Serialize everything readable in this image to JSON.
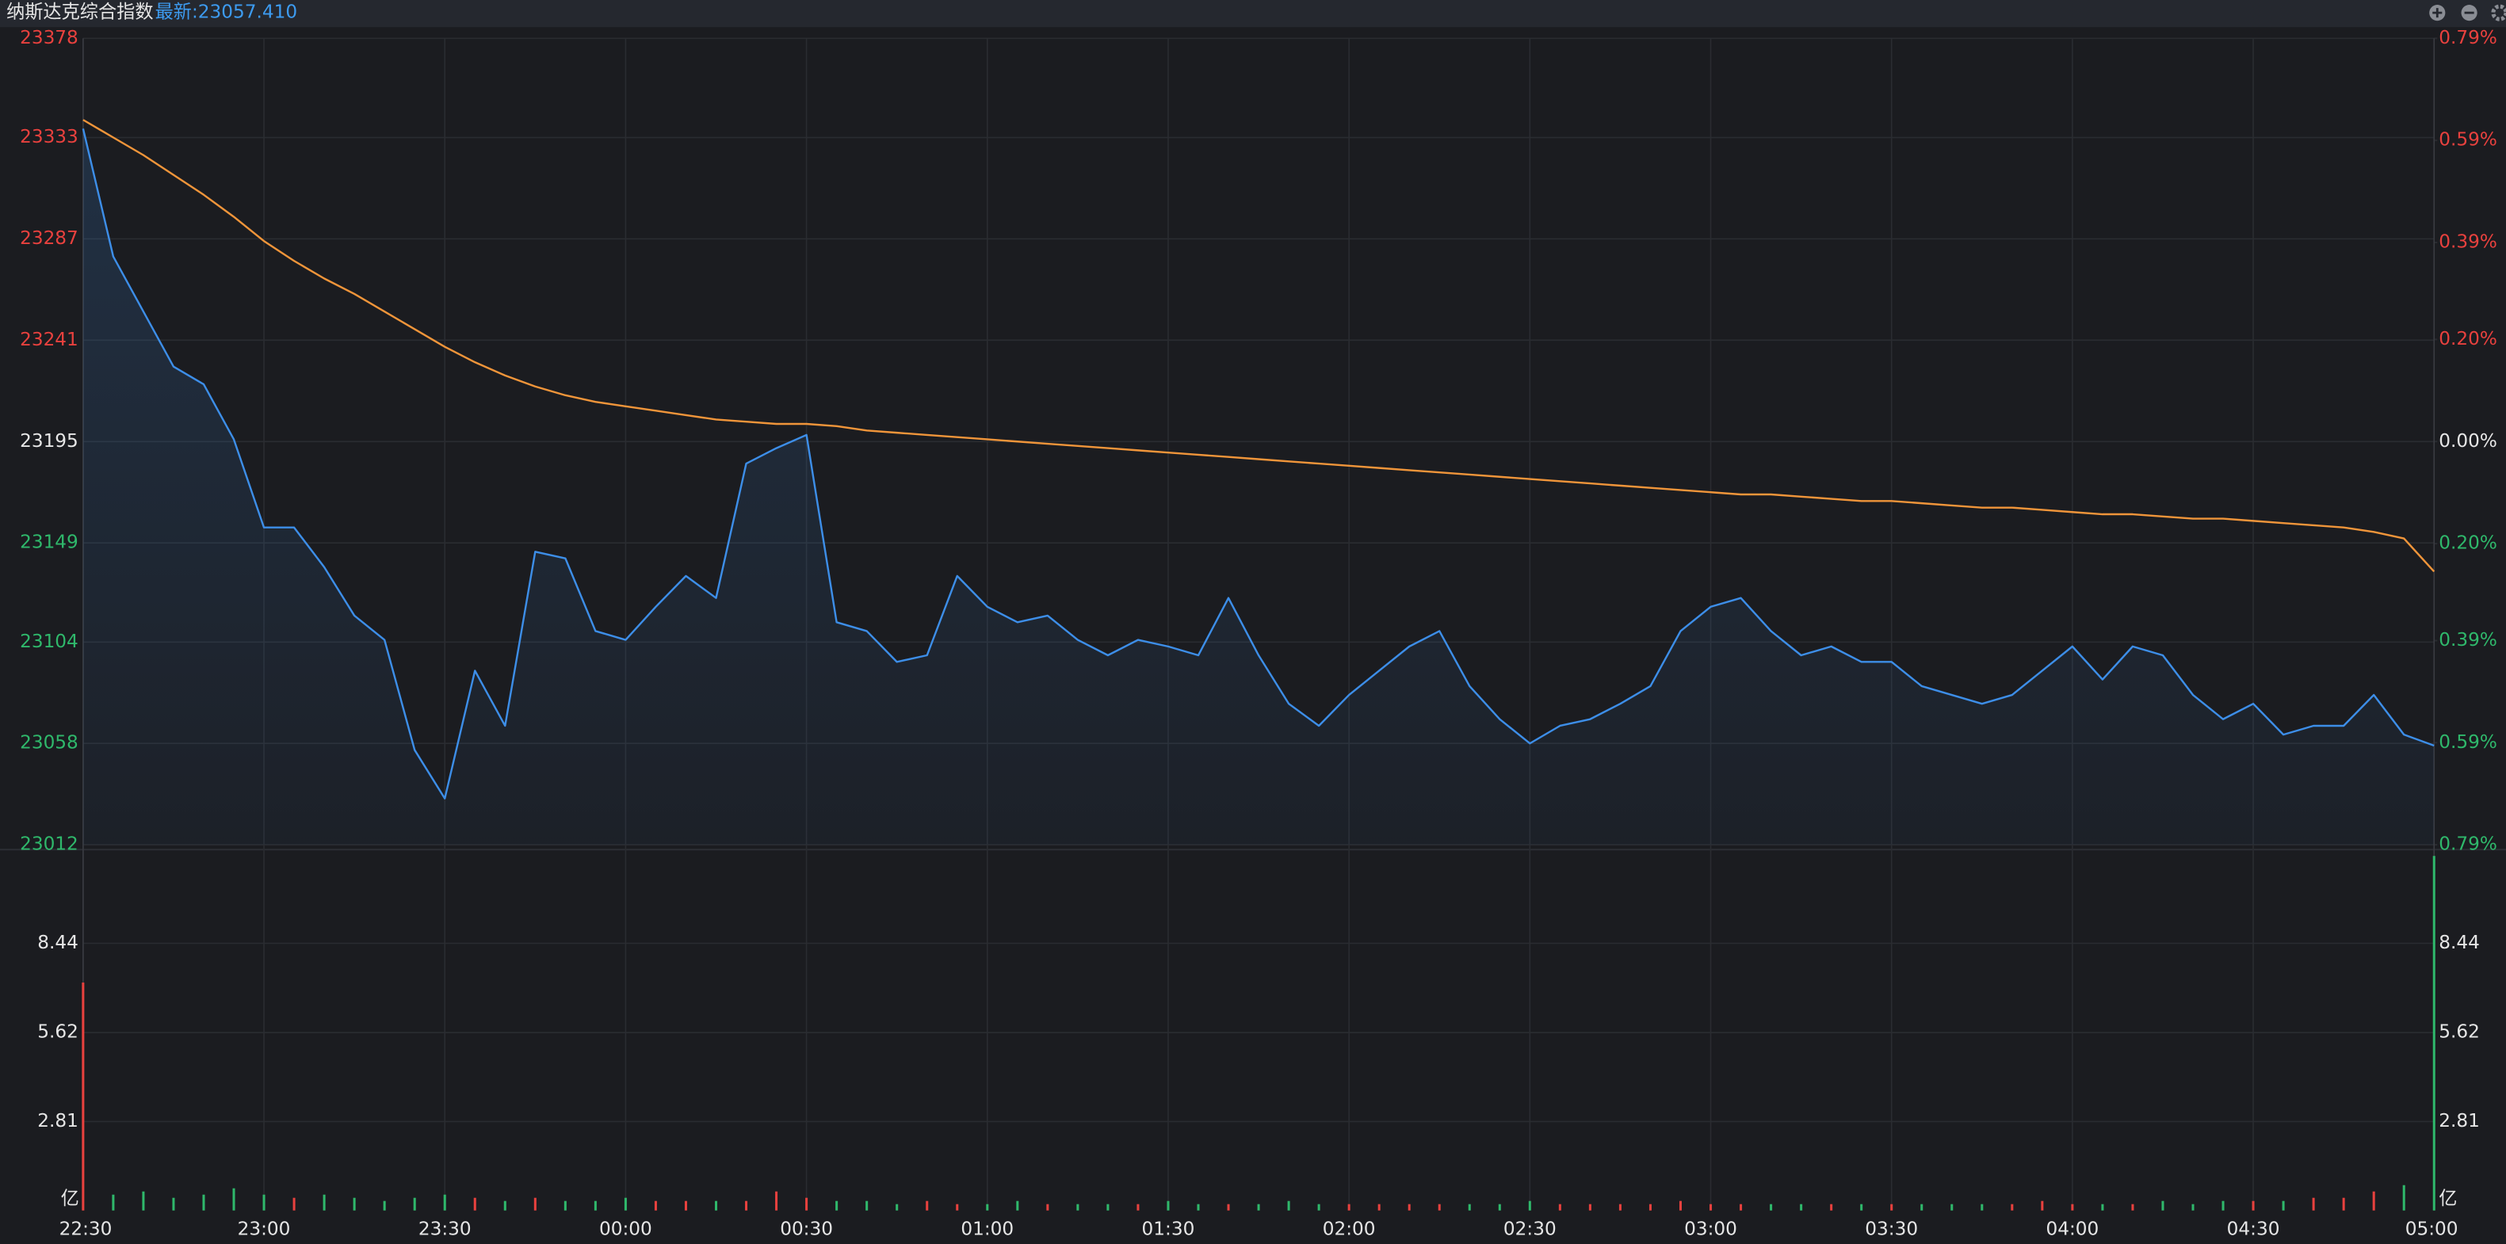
{
  "chart_data": {
    "type": "line",
    "title": "纳斯达克综合指数",
    "subtitle": "最新:23057.410",
    "x": [
      "22:30",
      "22:35",
      "22:40",
      "22:45",
      "22:50",
      "22:55",
      "23:00",
      "23:05",
      "23:10",
      "23:15",
      "23:20",
      "23:25",
      "23:30",
      "23:35",
      "23:40",
      "23:45",
      "23:50",
      "23:55",
      "00:00",
      "00:05",
      "00:10",
      "00:15",
      "00:20",
      "00:25",
      "00:30",
      "00:35",
      "00:40",
      "00:45",
      "00:50",
      "00:55",
      "01:00",
      "01:05",
      "01:10",
      "01:15",
      "01:20",
      "01:25",
      "01:30",
      "01:35",
      "01:40",
      "01:45",
      "01:50",
      "01:55",
      "02:00",
      "02:05",
      "02:10",
      "02:15",
      "02:20",
      "02:25",
      "02:30",
      "02:35",
      "02:40",
      "02:45",
      "02:50",
      "02:55",
      "03:00",
      "03:05",
      "03:10",
      "03:15",
      "03:20",
      "03:25",
      "03:30",
      "03:35",
      "03:40",
      "03:45",
      "03:50",
      "03:55",
      "04:00",
      "04:05",
      "04:10",
      "04:15",
      "04:20",
      "04:25",
      "04:30",
      "04:35",
      "04:40",
      "04:45",
      "04:50",
      "04:55",
      "05:00"
    ],
    "xticks": [
      "22:30",
      "23:00",
      "23:30",
      "00:00",
      "00:30",
      "01:00",
      "01:30",
      "02:00",
      "02:30",
      "03:00",
      "03:30",
      "04:00",
      "04:30",
      "05:00"
    ],
    "ylim": [
      23012,
      23378
    ],
    "yticks": [
      23378,
      23333,
      23287,
      23241,
      23195,
      23149,
      23104,
      23058,
      23012
    ],
    "y2lim": [
      -0.79,
      0.79
    ],
    "y2ticks": [
      {
        "value": 0.79,
        "label": "0.79%"
      },
      {
        "value": 0.59,
        "label": "0.59%"
      },
      {
        "value": 0.39,
        "label": "0.39%"
      },
      {
        "value": 0.2,
        "label": "0.20%"
      },
      {
        "value": 0,
        "label": "0.00%"
      },
      {
        "value": -0.2,
        "label": "0.20%"
      },
      {
        "value": -0.39,
        "label": "0.39%"
      },
      {
        "value": -0.59,
        "label": "0.59%"
      },
      {
        "value": -0.79,
        "label": "0.79%"
      }
    ],
    "grid": true,
    "area": true,
    "series": [
      {
        "color": "#3d8ee8",
        "values": [
          23337,
          23279,
          23254,
          23229,
          23221,
          23196,
          23156,
          23156,
          23138,
          23116,
          23105,
          23055,
          23033,
          23091,
          23066,
          23145,
          23142,
          23109,
          23105,
          23120,
          23134,
          23124,
          23185,
          23192,
          23198,
          23113,
          23109,
          23095,
          23098,
          23134,
          23120,
          23113,
          23116,
          23105,
          23098,
          23105,
          23102,
          23098,
          23124,
          23098,
          23076,
          23066,
          23080,
          23091,
          23102,
          23109,
          23084,
          23069,
          23058,
          23066,
          23069,
          23076,
          23084,
          23109,
          23120,
          23124,
          23109,
          23098,
          23102,
          23095,
          23095,
          23084,
          23080,
          23076,
          23080,
          23091,
          23102,
          23087,
          23102,
          23098,
          23080,
          23069,
          23076,
          23062,
          23066,
          23066,
          23080,
          23062,
          23057
        ]
      },
      {
        "color": "#f0953a",
        "values": [
          23341,
          23333,
          23325,
          23316,
          23307,
          23297,
          23286,
          23277,
          23269,
          23262,
          23254,
          23246,
          23238,
          23231,
          23225,
          23220,
          23216,
          23213,
          23211,
          23209,
          23207,
          23205,
          23204,
          23203,
          23203,
          23202,
          23200,
          23199,
          23198,
          23197,
          23196,
          23195,
          23194,
          23193,
          23192,
          23191,
          23190,
          23189,
          23188,
          23187,
          23186,
          23185,
          23184,
          23183,
          23182,
          23181,
          23180,
          23179,
          23178,
          23177,
          23176,
          23175,
          23174,
          23173,
          23172,
          23171,
          23171,
          23170,
          23169,
          23168,
          23168,
          23167,
          23166,
          23165,
          23165,
          23164,
          23163,
          23162,
          23162,
          23161,
          23160,
          23160,
          23159,
          23158,
          23157,
          23156,
          23154,
          23151,
          23136
        ]
      }
    ],
    "volume": {
      "type": "bar",
      "unit": "亿",
      "ylim": [
        0,
        11.25
      ],
      "yticks": [
        8.44,
        5.62,
        2.81
      ],
      "up_color": "#e8413e",
      "down_color": "#2fb86b",
      "values": [
        7.2,
        0.5,
        0.6,
        0.4,
        0.5,
        0.7,
        0.5,
        0.4,
        0.5,
        0.4,
        0.3,
        0.4,
        0.5,
        0.4,
        0.3,
        0.4,
        0.3,
        0.3,
        0.4,
        0.3,
        0.3,
        0.3,
        0.3,
        0.6,
        0.4,
        0.3,
        0.3,
        0.2,
        0.3,
        0.2,
        0.2,
        0.3,
        0.2,
        0.2,
        0.2,
        0.2,
        0.3,
        0.2,
        0.2,
        0.2,
        0.3,
        0.2,
        0.2,
        0.2,
        0.2,
        0.2,
        0.2,
        0.2,
        0.3,
        0.2,
        0.2,
        0.2,
        0.2,
        0.3,
        0.2,
        0.2,
        0.2,
        0.2,
        0.2,
        0.2,
        0.2,
        0.2,
        0.2,
        0.2,
        0.2,
        0.3,
        0.2,
        0.2,
        0.2,
        0.3,
        0.2,
        0.3,
        0.3,
        0.3,
        0.4,
        0.4,
        0.6,
        0.8,
        11.2
      ]
    }
  }
}
